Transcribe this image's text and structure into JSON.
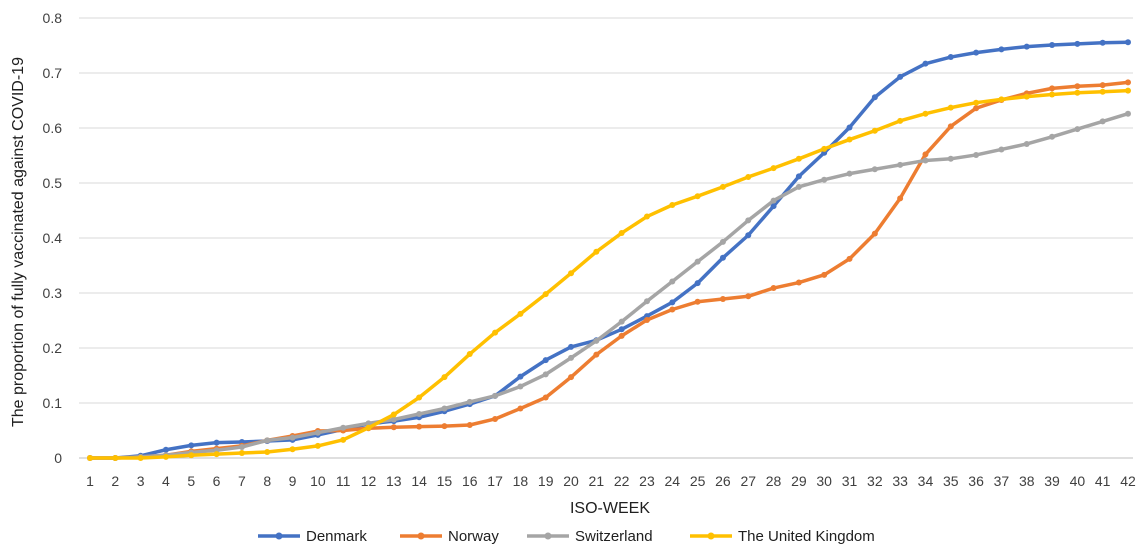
{
  "chart_data": {
    "type": "line",
    "xlabel": "ISO-WEEK",
    "ylabel": "The proportion of fully vaccinated against COVID-19",
    "ylim": [
      0,
      0.8
    ],
    "yticks": [
      "0",
      "0.1",
      "0.2",
      "0.3",
      "0.4",
      "0.5",
      "0.6",
      "0.7",
      "0.8"
    ],
    "grid": "horizontal",
    "legend_position": "bottom",
    "x": [
      1,
      2,
      3,
      4,
      5,
      6,
      7,
      8,
      9,
      10,
      11,
      12,
      13,
      14,
      15,
      16,
      17,
      18,
      19,
      20,
      21,
      22,
      23,
      24,
      25,
      26,
      27,
      28,
      29,
      30,
      31,
      32,
      33,
      34,
      35,
      36,
      37,
      38,
      39,
      40,
      41,
      42
    ],
    "series": [
      {
        "name": "Denmark",
        "color": "#4472C4",
        "values": [
          0,
          0,
          0.004,
          0.015,
          0.023,
          0.028,
          0.029,
          0.031,
          0.033,
          0.042,
          0.052,
          0.062,
          0.067,
          0.074,
          0.085,
          0.098,
          0.113,
          0.148,
          0.178,
          0.202,
          0.214,
          0.234,
          0.258,
          0.283,
          0.318,
          0.364,
          0.405,
          0.458,
          0.512,
          0.555,
          0.601,
          0.656,
          0.693,
          0.717,
          0.729,
          0.737,
          0.743,
          0.748,
          0.751,
          0.753,
          0.755,
          0.756
        ]
      },
      {
        "name": "Norway",
        "color": "#ED7D31",
        "values": [
          0,
          0,
          0.002,
          0.005,
          0.012,
          0.017,
          0.022,
          0.032,
          0.04,
          0.049,
          0.05,
          0.054,
          0.056,
          0.057,
          0.058,
          0.06,
          0.071,
          0.09,
          0.11,
          0.147,
          0.188,
          0.222,
          0.251,
          0.27,
          0.284,
          0.289,
          0.294,
          0.309,
          0.319,
          0.333,
          0.362,
          0.408,
          0.472,
          0.552,
          0.603,
          0.636,
          0.651,
          0.663,
          0.672,
          0.676,
          0.678,
          0.683
        ]
      },
      {
        "name": "Switzerland",
        "color": "#A5A5A5",
        "values": [
          0,
          0,
          0.002,
          0.005,
          0.01,
          0.014,
          0.02,
          0.032,
          0.037,
          0.046,
          0.055,
          0.063,
          0.07,
          0.08,
          0.09,
          0.102,
          0.113,
          0.13,
          0.152,
          0.182,
          0.213,
          0.248,
          0.285,
          0.321,
          0.357,
          0.393,
          0.432,
          0.468,
          0.493,
          0.506,
          0.517,
          0.525,
          0.533,
          0.541,
          0.544,
          0.551,
          0.561,
          0.571,
          0.584,
          0.598,
          0.612,
          0.626
        ]
      },
      {
        "name": "The United Kingdom",
        "color": "#FFC000",
        "values": [
          0,
          0,
          0,
          0.002,
          0.005,
          0.007,
          0.009,
          0.011,
          0.016,
          0.022,
          0.033,
          0.055,
          0.079,
          0.11,
          0.147,
          0.189,
          0.228,
          0.262,
          0.298,
          0.336,
          0.375,
          0.409,
          0.439,
          0.46,
          0.476,
          0.493,
          0.511,
          0.527,
          0.544,
          0.562,
          0.579,
          0.595,
          0.613,
          0.626,
          0.637,
          0.646,
          0.652,
          0.657,
          0.661,
          0.664,
          0.666,
          0.668
        ]
      }
    ]
  }
}
